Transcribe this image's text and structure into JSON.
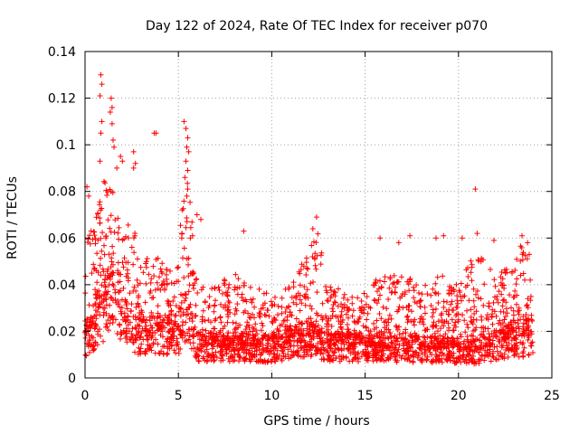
{
  "chart_data": {
    "type": "scatter",
    "title": "Day 122 of 2024, Rate Of TEC Index for receiver p070",
    "xlabel": "GPS time / hours",
    "ylabel": "ROTI / TECUs",
    "xlim": [
      0,
      25
    ],
    "ylim": [
      0,
      0.14
    ],
    "xticks": [
      0,
      5,
      10,
      15,
      20,
      25
    ],
    "xtick_labels": [
      "0",
      "5",
      "10",
      "15",
      "20",
      "25"
    ],
    "yticks": [
      0,
      0.02,
      0.04,
      0.06,
      0.08,
      0.1,
      0.12,
      0.14
    ],
    "ytick_labels": [
      "0",
      "0.02",
      "0.04",
      "0.06",
      "0.08",
      "0.1",
      "0.12",
      "0.14"
    ],
    "grid": true,
    "marker": "+",
    "color": "#ff0000",
    "x_extent_hours": [
      0,
      24
    ],
    "baseline_roti": [
      [
        0,
        0.018
      ],
      [
        1,
        0.03
      ],
      [
        1.5,
        0.04
      ],
      [
        2,
        0.025
      ],
      [
        3,
        0.018
      ],
      [
        4,
        0.02
      ],
      [
        5,
        0.02
      ],
      [
        5.5,
        0.03
      ],
      [
        6,
        0.014
      ],
      [
        8,
        0.014
      ],
      [
        10,
        0.013
      ],
      [
        12,
        0.018
      ],
      [
        13,
        0.014
      ],
      [
        15,
        0.014
      ],
      [
        17,
        0.013
      ],
      [
        19,
        0.013
      ],
      [
        20,
        0.012
      ],
      [
        21,
        0.012
      ],
      [
        23,
        0.018
      ],
      [
        24,
        0.018
      ]
    ],
    "upper_envelope_roti": [
      [
        0,
        0.06
      ],
      [
        0.5,
        0.07
      ],
      [
        1,
        0.085
      ],
      [
        1.5,
        0.08
      ],
      [
        2,
        0.06
      ],
      [
        2.5,
        0.07
      ],
      [
        3,
        0.05
      ],
      [
        4,
        0.055
      ],
      [
        4.5,
        0.045
      ],
      [
        5,
        0.06
      ],
      [
        5.5,
        0.09
      ],
      [
        6,
        0.04
      ],
      [
        7,
        0.04
      ],
      [
        8,
        0.045
      ],
      [
        9,
        0.04
      ],
      [
        10,
        0.035
      ],
      [
        11,
        0.04
      ],
      [
        12,
        0.058
      ],
      [
        12.5,
        0.065
      ],
      [
        13,
        0.04
      ],
      [
        14,
        0.038
      ],
      [
        15,
        0.04
      ],
      [
        16,
        0.045
      ],
      [
        17,
        0.045
      ],
      [
        18,
        0.04
      ],
      [
        19,
        0.045
      ],
      [
        20,
        0.04
      ],
      [
        20.5,
        0.048
      ],
      [
        21,
        0.055
      ],
      [
        22,
        0.045
      ],
      [
        23,
        0.05
      ],
      [
        23.5,
        0.06
      ],
      [
        24,
        0.05
      ]
    ],
    "peaks": [
      {
        "x": 0.85,
        "y": 0.13
      },
      {
        "x": 0.9,
        "y": 0.126
      },
      {
        "x": 0.8,
        "y": 0.121
      },
      {
        "x": 0.9,
        "y": 0.11
      },
      {
        "x": 0.85,
        "y": 0.105
      },
      {
        "x": 0.8,
        "y": 0.093
      },
      {
        "x": 1.4,
        "y": 0.12
      },
      {
        "x": 1.45,
        "y": 0.116
      },
      {
        "x": 1.35,
        "y": 0.114
      },
      {
        "x": 1.45,
        "y": 0.109
      },
      {
        "x": 1.5,
        "y": 0.102
      },
      {
        "x": 1.55,
        "y": 0.099
      },
      {
        "x": 1.7,
        "y": 0.09
      },
      {
        "x": 1.9,
        "y": 0.095
      },
      {
        "x": 2.0,
        "y": 0.093
      },
      {
        "x": 2.6,
        "y": 0.097
      },
      {
        "x": 2.7,
        "y": 0.092
      },
      {
        "x": 2.6,
        "y": 0.09
      },
      {
        "x": 3.7,
        "y": 0.105
      },
      {
        "x": 3.8,
        "y": 0.105
      },
      {
        "x": 5.3,
        "y": 0.11
      },
      {
        "x": 5.4,
        "y": 0.107
      },
      {
        "x": 5.5,
        "y": 0.103
      },
      {
        "x": 5.45,
        "y": 0.099
      },
      {
        "x": 5.55,
        "y": 0.097
      },
      {
        "x": 5.4,
        "y": 0.093
      },
      {
        "x": 5.5,
        "y": 0.089
      },
      {
        "x": 5.35,
        "y": 0.086
      },
      {
        "x": 5.5,
        "y": 0.081
      },
      {
        "x": 5.45,
        "y": 0.078
      },
      {
        "x": 5.2,
        "y": 0.072
      },
      {
        "x": 6.2,
        "y": 0.068
      },
      {
        "x": 6.0,
        "y": 0.07
      },
      {
        "x": 8.5,
        "y": 0.063
      },
      {
        "x": 12.4,
        "y": 0.069
      },
      {
        "x": 12.2,
        "y": 0.064
      },
      {
        "x": 15.8,
        "y": 0.06
      },
      {
        "x": 16.8,
        "y": 0.058
      },
      {
        "x": 17.4,
        "y": 0.061
      },
      {
        "x": 18.8,
        "y": 0.06
      },
      {
        "x": 19.2,
        "y": 0.061
      },
      {
        "x": 20.9,
        "y": 0.081
      },
      {
        "x": 20.2,
        "y": 0.06
      },
      {
        "x": 21.0,
        "y": 0.062
      },
      {
        "x": 21.9,
        "y": 0.059
      },
      {
        "x": 23.4,
        "y": 0.061
      },
      {
        "x": 23.7,
        "y": 0.058
      },
      {
        "x": 0.1,
        "y": 0.082
      },
      {
        "x": 0.2,
        "y": 0.078
      }
    ]
  }
}
